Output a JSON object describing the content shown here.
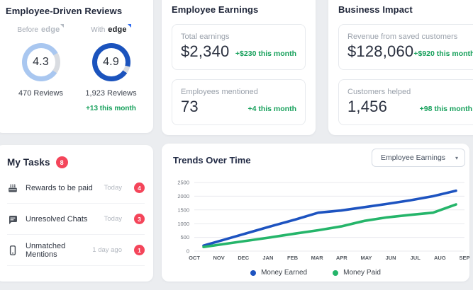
{
  "colors": {
    "green": "#16a05b",
    "red": "#f4455a",
    "gauge_blue_light": "#a9c7f0",
    "gauge_blue_dark": "#1b53bd",
    "gauge_track": "#d9dce1"
  },
  "reviews": {
    "title": "Employee-Driven Reviews",
    "before": {
      "label_prefix": "Before",
      "brand": "edge",
      "value": "4.3",
      "reviews": "470 Reviews"
    },
    "with": {
      "label_prefix": "With",
      "brand": "edge",
      "value": "4.9",
      "reviews": "1,923 Reviews",
      "delta": "+13 this month"
    }
  },
  "earnings": {
    "title": "Employee Earnings",
    "stats": [
      {
        "label": "Total earnings",
        "value": "$2,340",
        "delta": "+$230 this month"
      },
      {
        "label": "Employees mentioned",
        "value": "73",
        "delta": "+4 this month"
      }
    ]
  },
  "impact": {
    "title": "Business Impact",
    "stats": [
      {
        "label": "Revenue from saved customers",
        "value": "$128,060",
        "delta": "+$920 this month"
      },
      {
        "label": "Customers helped",
        "value": "1,456",
        "delta": "+98 this month"
      }
    ]
  },
  "tasks": {
    "title": "My Tasks",
    "total_badge": "8",
    "items": [
      {
        "icon": "cake-icon",
        "label": "Rewards to be paid",
        "time": "Today",
        "count": "4"
      },
      {
        "icon": "chat-icon",
        "label": "Unresolved Chats",
        "time": "Today",
        "count": "3"
      },
      {
        "icon": "phone-icon",
        "label": "Unmatched Mentions",
        "time": "1 day ago",
        "count": "1"
      }
    ]
  },
  "trends": {
    "title": "Trends Over Time",
    "dropdown_value": "Employee Earnings",
    "caret": "▾"
  },
  "chart_data": {
    "type": "line",
    "x": [
      "OCT",
      "NOV",
      "DEC",
      "JAN",
      "FEB",
      "MAR",
      "APR",
      "MAY",
      "JUN",
      "JUL",
      "AUG",
      "SEP"
    ],
    "series": [
      {
        "name": "Money Earned",
        "color": "#1d53c0",
        "values": [
          200,
          440,
          680,
          920,
          1150,
          1400,
          1480,
          1600,
          1720,
          1850,
          2000,
          2200
        ]
      },
      {
        "name": "Money Paid",
        "color": "#25b56a",
        "values": [
          150,
          270,
          390,
          510,
          640,
          760,
          900,
          1100,
          1230,
          1320,
          1400,
          1700
        ]
      }
    ],
    "ylim": [
      0,
      2500
    ],
    "yticks": [
      0,
      500,
      1000,
      1500,
      2000,
      2500
    ],
    "grid": true,
    "legend_position": "bottom"
  }
}
